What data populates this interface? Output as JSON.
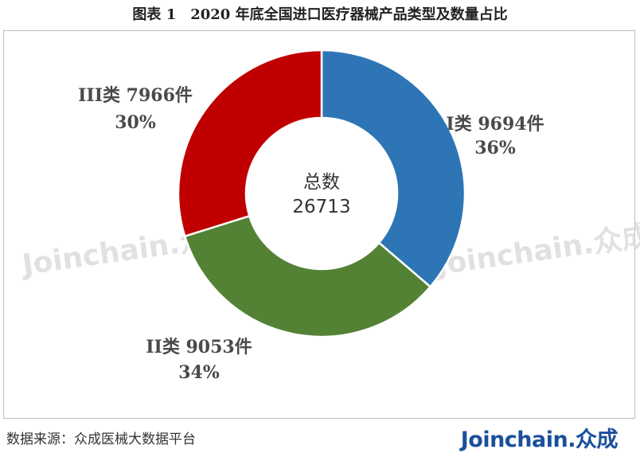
{
  "title": "图表 1　2020 年底全国进口医疗器械产品类型及数量占比",
  "source": "数据来源：众成医械大数据平台",
  "brand": {
    "text": "Joinchain",
    "suffix": "众成"
  },
  "watermark": "Joinchain.众成",
  "chart_data": {
    "type": "pie",
    "donut": true,
    "center_label": "总数",
    "center_value": "26713",
    "slices": [
      {
        "name": "I类",
        "value": 9694,
        "unit": "件",
        "percent": "36%",
        "color": "#2e75b6"
      },
      {
        "name": "II类",
        "value": 9053,
        "unit": "件",
        "percent": "34%",
        "color": "#548235"
      },
      {
        "name": "III类",
        "value": 7966,
        "unit": "件",
        "percent": "30%",
        "color": "#c00000"
      }
    ]
  }
}
